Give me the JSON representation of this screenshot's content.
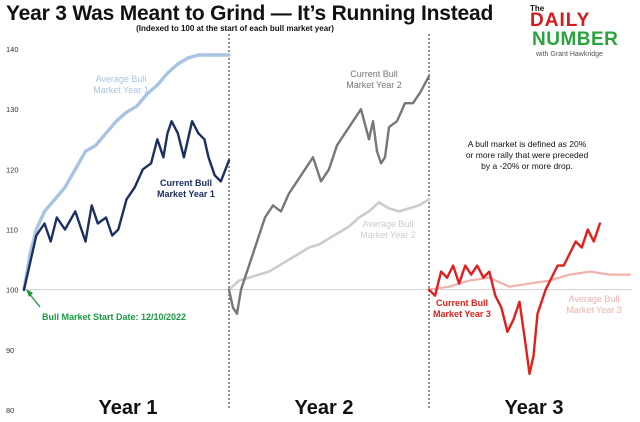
{
  "title": "Year 3 Was Meant to Grind — It’s Running Instead",
  "subtitle": "(Indexed to 100 at the start of each bull market year)",
  "logo": {
    "line1": "The",
    "line2": "DAILY",
    "line3": "NUMBER",
    "line4": "with Grant Hawkridge"
  },
  "colors": {
    "current_year1": "#1b2f63",
    "average_year1": "#a8c4e2",
    "current_year2": "#777777",
    "average_year2": "#cccccc",
    "current_year3": "#e0201d",
    "average_year3": "#f0b2ad",
    "start_marker": "#1a9a42"
  },
  "chart_data": {
    "type": "line",
    "title": "Year 3 Was Meant to Grind — It’s Running Instead",
    "subtitle": "(Indexed to 100 at the start of each bull market year)",
    "xlabel": "",
    "ylabel": "",
    "ylim": [
      80,
      140
    ],
    "yticks": [
      80,
      90,
      100,
      110,
      120,
      130,
      140
    ],
    "xlim": [
      0,
      3
    ],
    "panels": [
      "Year 1",
      "Year 2",
      "Year 3"
    ],
    "reference_line": 100,
    "grid": false,
    "series": [
      {
        "name": "Average Bull Market Year 1",
        "label_lines": [
          "Average Bull",
          "Market Year 1"
        ],
        "color": "#a8c4e2",
        "x": [
          0,
          0.03,
          0.06,
          0.1,
          0.15,
          0.2,
          0.25,
          0.3,
          0.35,
          0.4,
          0.45,
          0.5,
          0.55,
          0.6,
          0.65,
          0.7,
          0.75,
          0.8,
          0.85,
          0.9,
          0.95,
          1.0
        ],
        "y": [
          100,
          106,
          110,
          113,
          115,
          117,
          120,
          123,
          124,
          126,
          128,
          129.5,
          130.5,
          132.5,
          134,
          136,
          137.5,
          138.5,
          139,
          139,
          139,
          139
        ]
      },
      {
        "name": "Current Bull Market Year 1",
        "label_lines": [
          "Current Bull",
          "Market Year 1"
        ],
        "color": "#1b2f63",
        "x": [
          0,
          0.02,
          0.04,
          0.06,
          0.1,
          0.13,
          0.16,
          0.2,
          0.25,
          0.3,
          0.33,
          0.36,
          0.4,
          0.43,
          0.46,
          0.5,
          0.54,
          0.58,
          0.62,
          0.65,
          0.68,
          0.7,
          0.72,
          0.75,
          0.78,
          0.82,
          0.85,
          0.88,
          0.9,
          0.93,
          0.96,
          1.0
        ],
        "y": [
          100,
          103,
          106,
          109,
          111,
          108,
          112,
          110,
          113,
          108,
          114,
          111,
          112,
          109,
          110,
          115,
          117,
          120,
          121,
          125,
          122,
          126,
          128,
          126,
          122,
          128,
          126,
          125,
          122,
          119,
          118,
          121.5
        ]
      },
      {
        "name": "Current Bull Market Year 2",
        "label_lines": [
          "Current Bull",
          "Market Year 2"
        ],
        "color": "#777777",
        "x": [
          0,
          0.02,
          0.04,
          0.06,
          0.09,
          0.12,
          0.15,
          0.18,
          0.22,
          0.26,
          0.3,
          0.34,
          0.38,
          0.42,
          0.46,
          0.5,
          0.54,
          0.58,
          0.62,
          0.66,
          0.7,
          0.72,
          0.74,
          0.76,
          0.78,
          0.8,
          0.84,
          0.88,
          0.92,
          0.96,
          1.0
        ],
        "y": [
          100,
          97,
          96,
          100,
          103,
          106,
          109,
          112,
          114,
          113,
          116,
          118,
          120,
          122,
          118,
          120,
          124,
          126,
          128,
          130,
          125,
          128,
          123,
          121,
          122,
          127,
          128,
          131,
          131,
          133,
          135.5
        ]
      },
      {
        "name": "Average Bull Market Year 2",
        "label_lines": [
          "Average Bull",
          "Market Year 2"
        ],
        "color": "#cccccc",
        "x": [
          0,
          0.05,
          0.1,
          0.15,
          0.2,
          0.25,
          0.3,
          0.35,
          0.4,
          0.45,
          0.5,
          0.55,
          0.6,
          0.65,
          0.7,
          0.75,
          0.8,
          0.85,
          0.9,
          0.95,
          1.0
        ],
        "y": [
          100,
          101.5,
          102,
          102.5,
          103,
          104,
          105,
          106,
          107,
          107.5,
          108.5,
          109.5,
          110.5,
          112,
          113,
          114.5,
          113.5,
          113,
          113.5,
          114,
          115
        ]
      },
      {
        "name": "Current Bull Market Year 3",
        "label_lines": [
          "Current Bull",
          "Market Year 3"
        ],
        "color": "#e0201d",
        "x": [
          0,
          0.03,
          0.06,
          0.09,
          0.12,
          0.15,
          0.18,
          0.21,
          0.24,
          0.27,
          0.3,
          0.33,
          0.36,
          0.39,
          0.42,
          0.45,
          0.48,
          0.5,
          0.52,
          0.54,
          0.56,
          0.58,
          0.61,
          0.64,
          0.67,
          0.7,
          0.73,
          0.76,
          0.79,
          0.82,
          0.85
        ],
        "y": [
          100,
          99,
          103,
          102,
          104,
          101,
          104,
          102.5,
          104,
          102,
          103,
          99,
          97,
          93,
          95,
          98,
          91,
          86,
          89,
          96,
          98,
          100,
          102,
          104,
          104,
          106,
          108,
          107,
          110,
          108,
          111
        ]
      },
      {
        "name": "Average Bull Market Year 3",
        "label_lines": [
          "Average Bull",
          "Market Year 3"
        ],
        "color": "#f0b2ad",
        "x": [
          0,
          0.1,
          0.2,
          0.3,
          0.4,
          0.5,
          0.6,
          0.7,
          0.8,
          0.9,
          1.0
        ],
        "y": [
          100,
          100.5,
          101.5,
          102,
          100.5,
          101,
          101.5,
          102.5,
          103,
          102.5,
          102.5
        ]
      }
    ],
    "annotations": {
      "start_marker_label": "Bull Market Start Date: 12/10/2022",
      "note_lines": [
        "A bull market is defined as 20%",
        "or more rally that were preceded",
        "by a -20% or more drop."
      ]
    }
  }
}
